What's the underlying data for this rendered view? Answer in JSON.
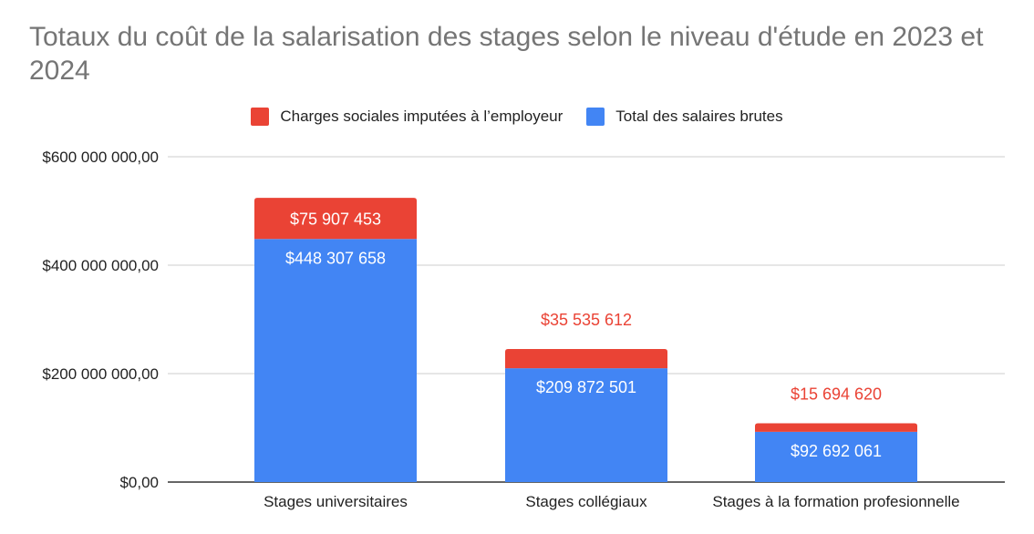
{
  "chart_data": {
    "type": "bar",
    "stacked": true,
    "title": "Totaux du coût de la salarisation des stages selon le niveau d'étude en 2023 et 2024",
    "categories": [
      "Stages universitaires",
      "Stages collégiaux",
      "Stages à la formation profesionnelle"
    ],
    "series": [
      {
        "name": "Total des salaires brutes",
        "color": "#4285f4",
        "values": [
          448307658,
          209872501,
          92692061
        ],
        "labels": [
          "$448 307 658",
          "$209 872 501",
          "$92 692 061"
        ],
        "label_color": "#ffffff"
      },
      {
        "name": "Charges sociales imputées à l’employeur",
        "color": "#ea4335",
        "values": [
          75907453,
          35535612,
          15694620
        ],
        "labels": [
          "$75 907 453",
          "$35 535 612",
          "$15 694 620"
        ],
        "label_color": "#ffffff",
        "outside_label_color": "#ea4335"
      }
    ],
    "legend": {
      "position": "top",
      "entries": [
        {
          "name": "Charges sociales imputées à l’employeur",
          "color": "#ea4335"
        },
        {
          "name": "Total des salaires brutes",
          "color": "#4285f4"
        }
      ]
    },
    "ylim": [
      0,
      600000000
    ],
    "yticks": [
      0,
      200000000,
      400000000,
      600000000
    ],
    "ytick_labels": [
      "$0,00",
      "$200 000 000,00",
      "$400 000 000,00",
      "$600 000 000,00"
    ],
    "grid": true,
    "xlabel": "",
    "ylabel": ""
  }
}
